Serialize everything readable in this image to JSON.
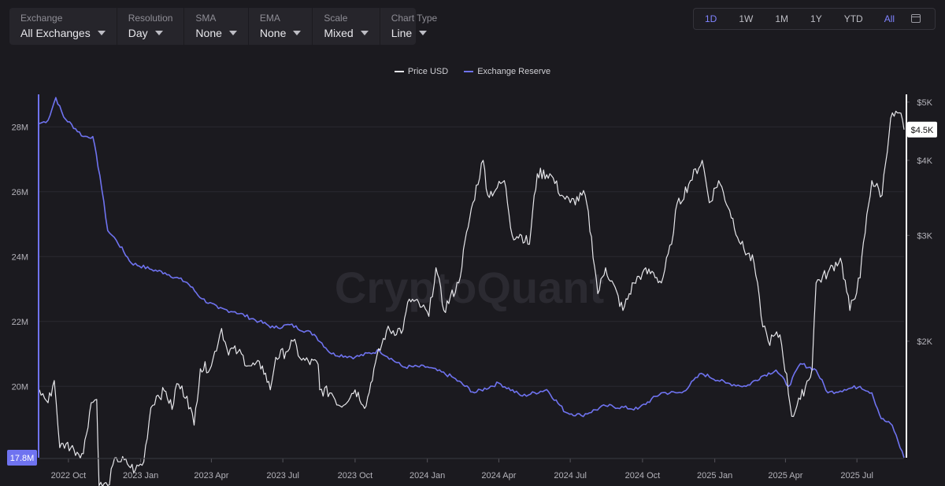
{
  "toolbar": {
    "controls": [
      {
        "label": "Exchange",
        "value": "All Exchanges"
      },
      {
        "label": "Resolution",
        "value": "Day"
      },
      {
        "label": "SMA",
        "value": "None"
      },
      {
        "label": "EMA",
        "value": "None"
      },
      {
        "label": "Scale",
        "value": "Mixed"
      },
      {
        "label": "Chart Type",
        "value": "Line"
      }
    ]
  },
  "ranges": {
    "items": [
      "1D",
      "1W",
      "1M",
      "1Y",
      "YTD",
      "All"
    ],
    "active": [
      "1D",
      "All"
    ]
  },
  "watermark": "CryptoQuant",
  "colors": {
    "background": "#1b1a1f",
    "price": "#e6e6ea",
    "reserve": "#6f73f0",
    "active": "#7f83ff"
  },
  "chart_data": {
    "type": "line",
    "x_type": "date",
    "legend_position": "top-center",
    "grid": true,
    "x_ticks": [
      "2022 Oct",
      "2023 Jan",
      "2023 Apr",
      "2023 Jul",
      "2023 Oct",
      "2024 Jan",
      "2024 Apr",
      "2024 Jul",
      "2024 Oct",
      "2025 Jan",
      "2025 Apr",
      "2025 Jul"
    ],
    "left_axis": {
      "ticks": [
        "20M",
        "22M",
        "24M",
        "26M",
        "28M"
      ],
      "range": [
        17.8,
        29.0
      ],
      "unit": "M",
      "current_label": "17.8M"
    },
    "right_axis": {
      "scale": "log",
      "ticks": [
        "$2K",
        "$3K",
        "$4K",
        "$5K"
      ],
      "range": [
        1280,
        5150
      ],
      "current_label": "$4.5K"
    },
    "series": [
      {
        "name": "Price USD",
        "axis": "right",
        "points": [
          [
            "2022-08-25",
            1660
          ],
          [
            "2022-09-05",
            1580
          ],
          [
            "2022-09-13",
            1720
          ],
          [
            "2022-09-20",
            1330
          ],
          [
            "2022-09-28",
            1350
          ],
          [
            "2022-10-08",
            1320
          ],
          [
            "2022-10-20",
            1300
          ],
          [
            "2022-10-30",
            1580
          ],
          [
            "2022-11-06",
            1600
          ],
          [
            "2022-11-09",
            1150
          ],
          [
            "2022-11-20",
            1150
          ],
          [
            "2022-12-01",
            1280
          ],
          [
            "2022-12-15",
            1250
          ],
          [
            "2022-12-25",
            1220
          ],
          [
            "2023-01-05",
            1260
          ],
          [
            "2023-01-14",
            1550
          ],
          [
            "2023-01-21",
            1620
          ],
          [
            "2023-02-02",
            1650
          ],
          [
            "2023-02-10",
            1540
          ],
          [
            "2023-02-16",
            1700
          ],
          [
            "2023-03-01",
            1620
          ],
          [
            "2023-03-10",
            1450
          ],
          [
            "2023-03-18",
            1800
          ],
          [
            "2023-04-01",
            1820
          ],
          [
            "2023-04-14",
            2100
          ],
          [
            "2023-04-21",
            1940
          ],
          [
            "2023-05-05",
            1920
          ],
          [
            "2023-05-20",
            1820
          ],
          [
            "2023-06-05",
            1820
          ],
          [
            "2023-06-15",
            1660
          ],
          [
            "2023-06-22",
            1880
          ],
          [
            "2023-07-05",
            1920
          ],
          [
            "2023-07-14",
            2000
          ],
          [
            "2023-07-25",
            1860
          ],
          [
            "2023-08-15",
            1830
          ],
          [
            "2023-08-17",
            1660
          ],
          [
            "2023-09-01",
            1640
          ],
          [
            "2023-09-12",
            1560
          ],
          [
            "2023-10-01",
            1660
          ],
          [
            "2023-10-15",
            1560
          ],
          [
            "2023-10-25",
            1800
          ],
          [
            "2023-11-10",
            2080
          ],
          [
            "2023-12-01",
            2090
          ],
          [
            "2023-12-09",
            2350
          ],
          [
            "2023-12-25",
            2280
          ],
          [
            "2024-01-03",
            2200
          ],
          [
            "2024-01-12",
            2650
          ],
          [
            "2024-01-22",
            2250
          ],
          [
            "2024-02-10",
            2500
          ],
          [
            "2024-02-28",
            3400
          ],
          [
            "2024-03-12",
            4000
          ],
          [
            "2024-03-18",
            3500
          ],
          [
            "2024-03-30",
            3600
          ],
          [
            "2024-04-08",
            3700
          ],
          [
            "2024-04-18",
            3000
          ],
          [
            "2024-04-30",
            3000
          ],
          [
            "2024-05-10",
            2900
          ],
          [
            "2024-05-20",
            3800
          ],
          [
            "2024-06-05",
            3800
          ],
          [
            "2024-06-20",
            3500
          ],
          [
            "2024-07-01",
            3400
          ],
          [
            "2024-07-20",
            3500
          ],
          [
            "2024-08-05",
            2400
          ],
          [
            "2024-08-15",
            2650
          ],
          [
            "2024-09-06",
            2250
          ],
          [
            "2024-09-20",
            2500
          ],
          [
            "2024-10-01",
            2600
          ],
          [
            "2024-10-15",
            2600
          ],
          [
            "2024-10-25",
            2500
          ],
          [
            "2024-11-07",
            2900
          ],
          [
            "2024-11-12",
            3300
          ],
          [
            "2024-12-01",
            3700
          ],
          [
            "2024-12-16",
            4000
          ],
          [
            "2024-12-25",
            3400
          ],
          [
            "2025-01-06",
            3700
          ],
          [
            "2025-01-20",
            3300
          ],
          [
            "2025-02-03",
            2900
          ],
          [
            "2025-02-20",
            2700
          ],
          [
            "2025-03-01",
            2200
          ],
          [
            "2025-03-10",
            2000
          ],
          [
            "2025-03-25",
            2050
          ],
          [
            "2025-04-09",
            1500
          ],
          [
            "2025-04-20",
            1600
          ],
          [
            "2025-05-05",
            1800
          ],
          [
            "2025-05-10",
            2500
          ],
          [
            "2025-05-25",
            2600
          ],
          [
            "2025-06-10",
            2750
          ],
          [
            "2025-06-22",
            2250
          ],
          [
            "2025-07-05",
            2550
          ],
          [
            "2025-07-20",
            3700
          ],
          [
            "2025-08-02",
            3500
          ],
          [
            "2025-08-13",
            4700
          ],
          [
            "2025-08-24",
            4800
          ],
          [
            "2025-08-30",
            4500
          ]
        ]
      },
      {
        "name": "Exchange Reserve",
        "axis": "left",
        "points": [
          [
            "2022-08-25",
            28.1
          ],
          [
            "2022-09-05",
            28.2
          ],
          [
            "2022-09-15",
            28.9
          ],
          [
            "2022-09-25",
            28.3
          ],
          [
            "2022-10-20",
            27.7
          ],
          [
            "2022-11-01",
            27.7
          ],
          [
            "2022-11-10",
            26.5
          ],
          [
            "2022-11-20",
            24.8
          ],
          [
            "2022-12-01",
            24.5
          ],
          [
            "2022-12-20",
            23.8
          ],
          [
            "2023-01-15",
            23.6
          ],
          [
            "2023-02-01",
            23.5
          ],
          [
            "2023-03-01",
            23.2
          ],
          [
            "2023-03-20",
            22.7
          ],
          [
            "2023-04-10",
            22.4
          ],
          [
            "2023-05-01",
            22.3
          ],
          [
            "2023-06-01",
            22.0
          ],
          [
            "2023-06-20",
            21.8
          ],
          [
            "2023-07-10",
            21.9
          ],
          [
            "2023-08-10",
            21.6
          ],
          [
            "2023-09-01",
            21.0
          ],
          [
            "2023-10-01",
            20.9
          ],
          [
            "2023-11-01",
            21.1
          ],
          [
            "2023-12-01",
            20.6
          ],
          [
            "2024-01-01",
            20.6
          ],
          [
            "2024-02-01",
            20.3
          ],
          [
            "2024-03-01",
            19.8
          ],
          [
            "2024-04-01",
            20.1
          ],
          [
            "2024-05-01",
            19.7
          ],
          [
            "2024-06-01",
            19.9
          ],
          [
            "2024-06-25",
            19.2
          ],
          [
            "2024-07-15",
            19.1
          ],
          [
            "2024-08-15",
            19.4
          ],
          [
            "2024-09-25",
            19.3
          ],
          [
            "2024-10-25",
            19.8
          ],
          [
            "2024-11-20",
            19.8
          ],
          [
            "2024-12-15",
            20.4
          ],
          [
            "2025-01-15",
            20.1
          ],
          [
            "2025-02-10",
            20.0
          ],
          [
            "2025-03-01",
            20.3
          ],
          [
            "2025-03-20",
            20.5
          ],
          [
            "2025-04-05",
            20.0
          ],
          [
            "2025-04-20",
            20.7
          ],
          [
            "2025-05-10",
            20.5
          ],
          [
            "2025-05-25",
            19.8
          ],
          [
            "2025-06-15",
            19.9
          ],
          [
            "2025-07-05",
            20.0
          ],
          [
            "2025-07-20",
            19.8
          ],
          [
            "2025-08-01",
            19.0
          ],
          [
            "2025-08-15",
            18.8
          ],
          [
            "2025-08-30",
            17.8
          ]
        ]
      }
    ]
  }
}
